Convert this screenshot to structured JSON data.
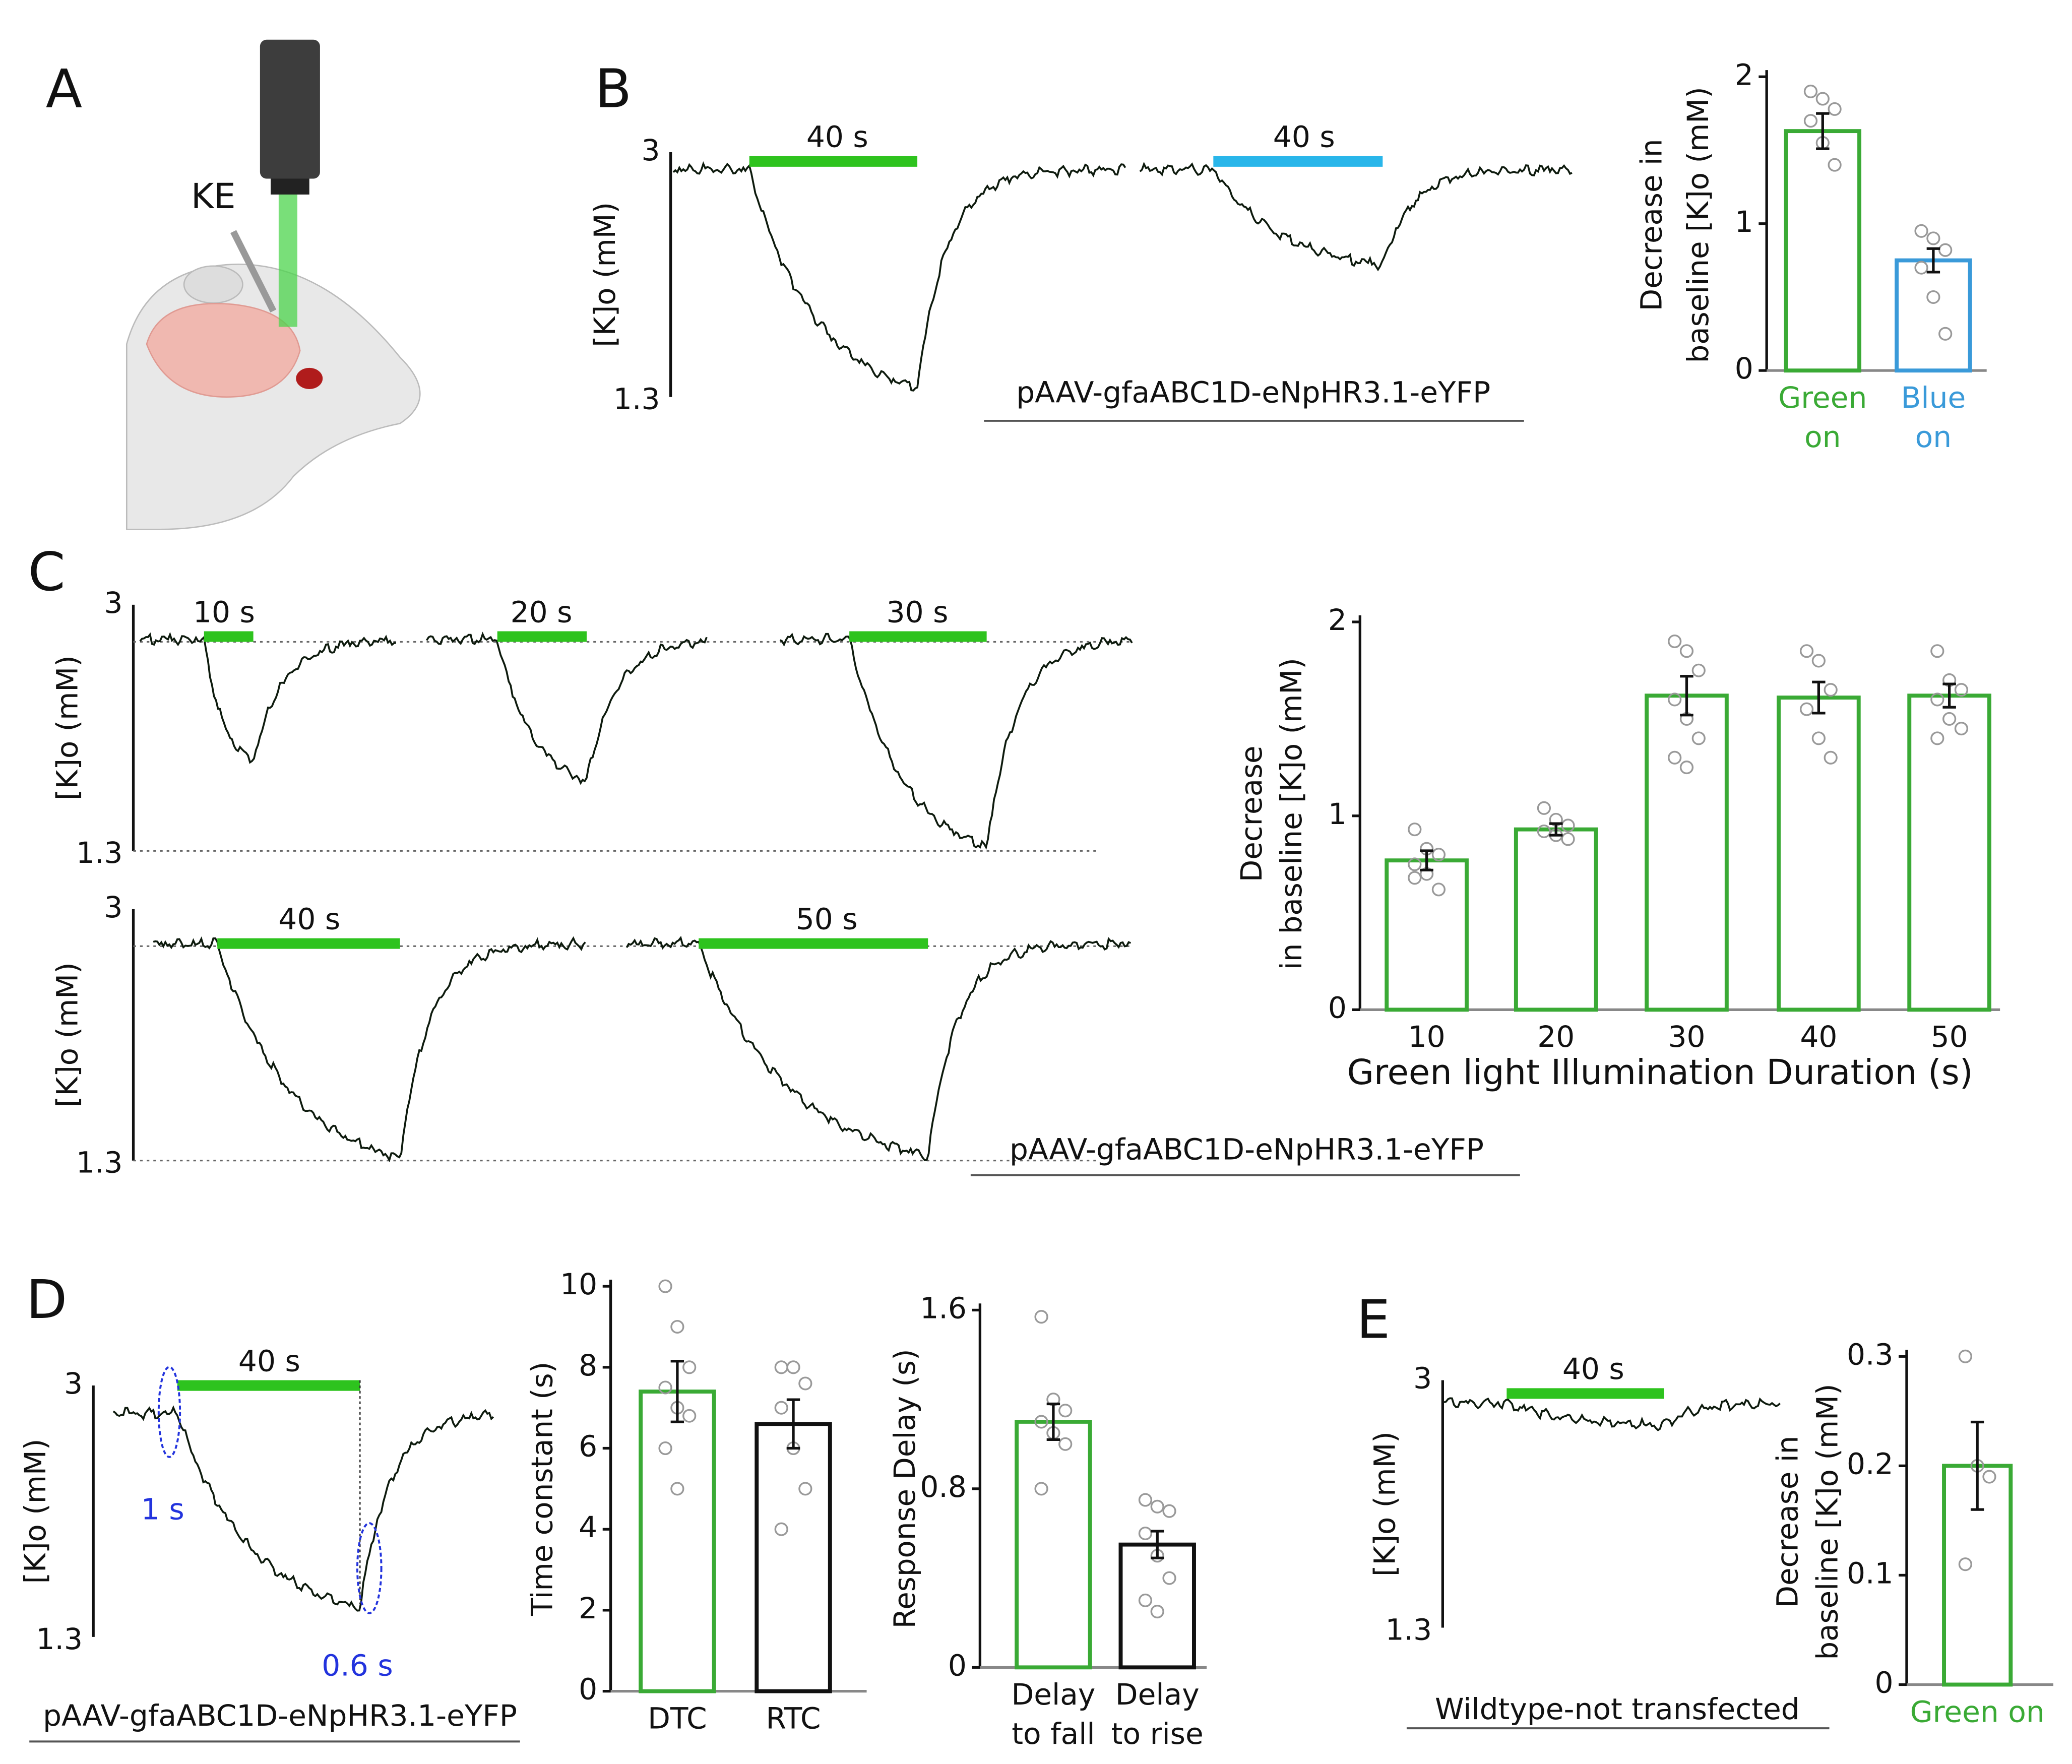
{
  "panel_labels": [
    "A",
    "B",
    "C",
    "D",
    "E"
  ],
  "illustration": {
    "label": "KE"
  },
  "stimulus_colors": [
    "#2ec31e",
    "#29b6ea"
  ],
  "traces": [
    {
      "ylabel": "[K]o (mM)",
      "ymax_label": "3",
      "ymin_label": "1.3",
      "stimuli": [
        "40 s",
        "40 s"
      ],
      "construct": "pAAV-gfaABC1D-eNpHR3.1-eYFP"
    },
    {
      "ylabel": "[K]o (mM)",
      "ymax_label": "3",
      "ymin_label": "1.3",
      "stimuli": [
        "10 s",
        "20 s",
        "30 s"
      ]
    },
    {
      "ylabel": "[K]o (mM)",
      "ymax_label": "3",
      "ymin_label": "1.3",
      "stimuli": [
        "40 s",
        "50 s"
      ],
      "construct": "pAAV-gfaABC1D-eNpHR3.1-eYFP"
    },
    {
      "ylabel": "[K]o (mM)",
      "ymax_label": "3",
      "ymin_label": "1.3",
      "stimuli": [
        "40 s"
      ],
      "annotations": [
        "1 s",
        "0.6 s"
      ],
      "construct": "pAAV-gfaABC1D-eNpHR3.1-eYFP"
    },
    {
      "ylabel": "[K]o (mM)",
      "ymax_label": "3",
      "ymin_label": "1.3",
      "stimuli": [
        "40 s"
      ],
      "construct": "Wildtype-not transfected"
    }
  ],
  "chart_data": [
    {
      "type": "bar",
      "ylabel": [
        "Decrease in",
        "baseline [K]o (mM)"
      ],
      "categories": [
        "Green on",
        "Blue on"
      ],
      "wrap_categories": true,
      "colored_labels": true,
      "values": [
        1.63,
        0.75
      ],
      "errors": [
        0.12,
        0.08
      ],
      "colors": [
        "#3aaa35",
        "#3a9ad9"
      ],
      "points": [
        [
          1.9,
          1.85,
          1.78,
          1.7,
          1.55,
          1.4
        ],
        [
          0.95,
          0.9,
          0.82,
          0.7,
          0.5,
          0.25
        ]
      ],
      "ylim": [
        0,
        2
      ],
      "yticks": [
        0,
        1,
        2
      ]
    },
    {
      "type": "bar",
      "ylabel": [
        "Decrease",
        "in baseline [K]o (mM)"
      ],
      "xlabel": "Green light Illumination Duration (s)",
      "categories": [
        "10",
        "20",
        "30",
        "40",
        "50"
      ],
      "values": [
        0.77,
        0.93,
        1.62,
        1.61,
        1.62
      ],
      "errors": [
        0.05,
        0.03,
        0.1,
        0.08,
        0.06
      ],
      "colors": [
        "#3aaa35",
        "#3aaa35",
        "#3aaa35",
        "#3aaa35",
        "#3aaa35"
      ],
      "points": [
        [
          0.93,
          0.83,
          0.8,
          0.75,
          0.7,
          0.62,
          0.68
        ],
        [
          1.04,
          0.98,
          0.95,
          0.92,
          0.9,
          0.88
        ],
        [
          1.9,
          1.85,
          1.75,
          1.6,
          1.5,
          1.4,
          1.3,
          1.25
        ],
        [
          1.85,
          1.8,
          1.65,
          1.55,
          1.4,
          1.3
        ],
        [
          1.85,
          1.7,
          1.65,
          1.6,
          1.5,
          1.45,
          1.4
        ]
      ],
      "ylim": [
        0,
        2
      ],
      "yticks": [
        0,
        1,
        2
      ]
    },
    {
      "type": "bar",
      "ylabel": [
        "Time constant (s)"
      ],
      "categories": [
        "DTC",
        "RTC"
      ],
      "values": [
        7.4,
        6.6
      ],
      "errors": [
        0.75,
        0.6
      ],
      "colors": [
        "#3aaa35",
        "#111111"
      ],
      "points": [
        [
          10,
          9,
          8,
          7.5,
          7,
          6.8,
          6,
          5
        ],
        [
          8,
          8,
          7.6,
          7,
          6,
          5,
          4
        ]
      ],
      "ylim": [
        0,
        10
      ],
      "yticks": [
        0,
        2,
        4,
        6,
        8,
        10
      ]
    },
    {
      "type": "bar",
      "ylabel": [
        "Response Delay (s)"
      ],
      "categories": [
        "Delay to fall",
        "Delay to rise"
      ],
      "wrap_categories": true,
      "values": [
        1.1,
        0.55
      ],
      "errors": [
        0.08,
        0.06
      ],
      "colors": [
        "#3aaa35",
        "#111111"
      ],
      "points": [
        [
          1.57,
          1.2,
          1.15,
          1.1,
          1.05,
          1.0,
          0.8
        ],
        [
          0.75,
          0.72,
          0.7,
          0.6,
          0.5,
          0.4,
          0.3,
          0.25
        ]
      ],
      "ylim": [
        0,
        1.6
      ],
      "yticks": [
        0,
        0.8,
        1.6
      ]
    },
    {
      "type": "bar",
      "ylabel": [
        "Decrease in",
        "baseline [K]o (mM)"
      ],
      "categories": [
        "Green on"
      ],
      "colored_labels": true,
      "values": [
        0.2
      ],
      "errors": [
        0.04
      ],
      "colors": [
        "#3aaa35"
      ],
      "points": [
        [
          0.3,
          0.2,
          0.19,
          0.11
        ]
      ],
      "ylim": [
        0,
        0.3
      ],
      "yticks": [
        0,
        0.1,
        0.2,
        0.3
      ]
    }
  ]
}
